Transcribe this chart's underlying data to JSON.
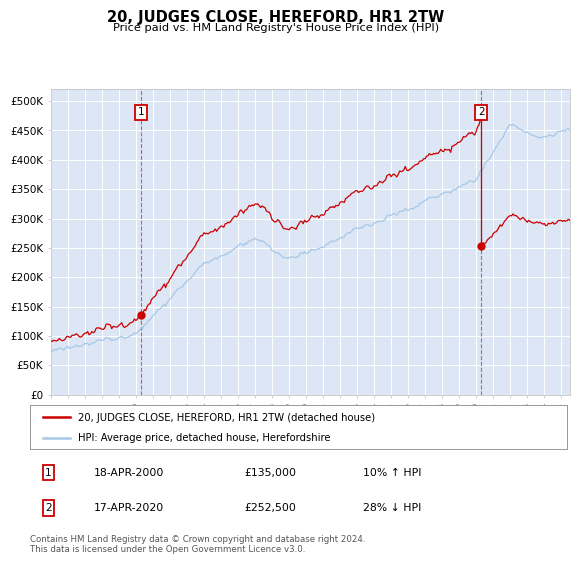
{
  "title": "20, JUDGES CLOSE, HEREFORD, HR1 2TW",
  "subtitle": "Price paid vs. HM Land Registry's House Price Index (HPI)",
  "ylim": [
    0,
    520000
  ],
  "yticks": [
    0,
    50000,
    100000,
    150000,
    200000,
    250000,
    300000,
    350000,
    400000,
    450000,
    500000
  ],
  "ytick_labels": [
    "£0",
    "£50K",
    "£100K",
    "£150K",
    "£200K",
    "£250K",
    "£300K",
    "£350K",
    "£400K",
    "£450K",
    "£500K"
  ],
  "hpi_color": "#a8c8e8",
  "price_color": "#cc0000",
  "bg_color": "#dce6f5",
  "plot_bg": "#ffffff",
  "grid_color": "#ffffff",
  "sale1_year": 2000.29,
  "sale1_value": 135000,
  "sale2_year": 2020.29,
  "sale2_value": 252500,
  "annotation1_date": "18-APR-2000",
  "annotation1_price": "£135,000",
  "annotation1_hpi": "10% ↑ HPI",
  "annotation2_date": "17-APR-2020",
  "annotation2_price": "£252,500",
  "annotation2_hpi": "28% ↓ HPI",
  "legend_label1": "20, JUDGES CLOSE, HEREFORD, HR1 2TW (detached house)",
  "legend_label2": "HPI: Average price, detached house, Herefordshire",
  "footnote": "Contains HM Land Registry data © Crown copyright and database right 2024.\nThis data is licensed under the Open Government Licence v3.0.",
  "xmin": 1995.0,
  "xmax": 2025.5
}
